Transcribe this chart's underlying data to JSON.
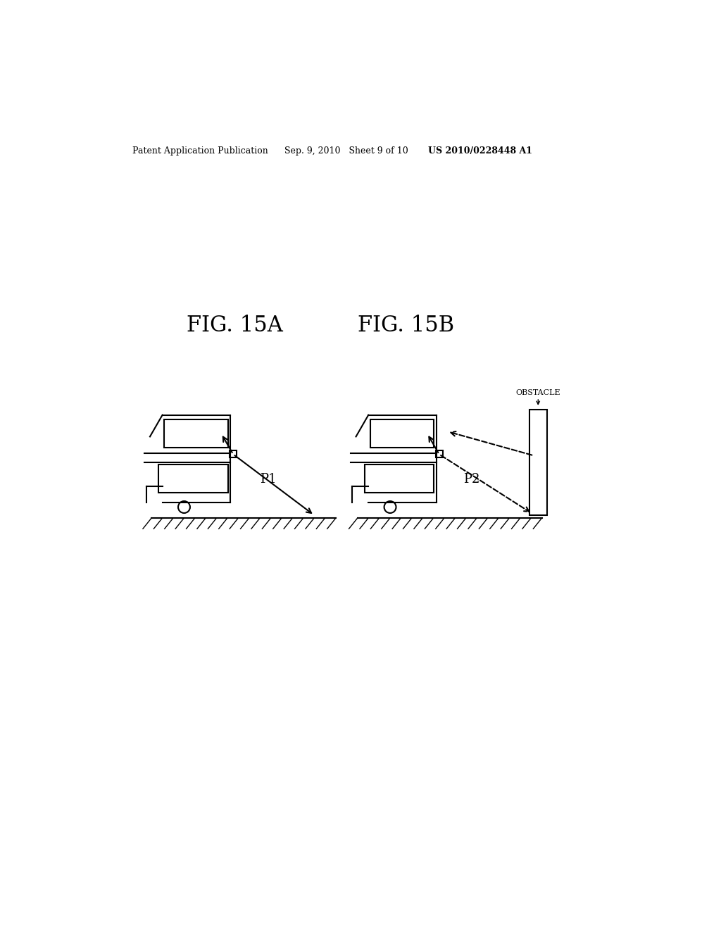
{
  "bg_color": "#ffffff",
  "text_color": "#000000",
  "header_left": "Patent Application Publication",
  "header_mid": "Sep. 9, 2010   Sheet 9 of 10",
  "header_right": "US 2010/0228448 A1",
  "fig_label_A": "FIG. 15A",
  "fig_label_B": "FIG. 15B",
  "label_P1": "P1",
  "label_P2": "P2",
  "label_obstacle": "OBSTACLE"
}
